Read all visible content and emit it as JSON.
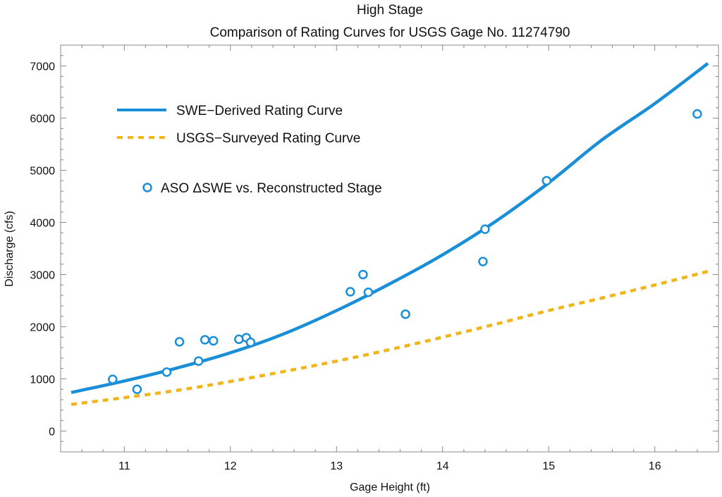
{
  "chart_data": {
    "type": "scatter",
    "title": "High Stage",
    "subtitle": "Comparison of Rating Curves for USGS Gage No. 11274790",
    "xlabel": "Gage Height (ft)",
    "ylabel": "Discharge (cfs)",
    "xlim": [
      10.4,
      16.6
    ],
    "ylim": [
      -400,
      7400
    ],
    "x_ticks": [
      11,
      12,
      13,
      14,
      15,
      16
    ],
    "y_ticks": [
      0,
      1000,
      2000,
      3000,
      4000,
      5000,
      6000,
      7000
    ],
    "grid": false,
    "legend_position": "top-left",
    "series": [
      {
        "name": "SWE−Derived Rating Curve",
        "kind": "line",
        "style": "solid",
        "color": "#1a8fd8",
        "x": [
          10.5,
          11.0,
          11.5,
          12.0,
          12.5,
          13.0,
          13.5,
          14.0,
          14.5,
          15.0,
          15.5,
          16.0,
          16.5
        ],
        "y": [
          740,
          960,
          1210,
          1500,
          1860,
          2310,
          2820,
          3380,
          4020,
          4760,
          5580,
          6280,
          7050
        ]
      },
      {
        "name": "USGS−Surveyed Rating Curve",
        "kind": "line",
        "style": "dashed",
        "color": "#f2b51c",
        "x": [
          10.5,
          11.0,
          11.5,
          12.0,
          12.5,
          13.0,
          13.5,
          14.0,
          14.5,
          15.0,
          15.5,
          16.0,
          16.5
        ],
        "y": [
          510,
          640,
          780,
          950,
          1140,
          1340,
          1560,
          1800,
          2050,
          2310,
          2550,
          2800,
          3060
        ]
      },
      {
        "name": "ASO ΔSWE vs. Reconstructed Stage",
        "kind": "points",
        "color": "#1a8fd8",
        "x": [
          10.89,
          11.12,
          11.4,
          11.52,
          11.7,
          11.76,
          11.84,
          12.08,
          12.15,
          12.19,
          13.13,
          13.25,
          13.3,
          13.65,
          14.38,
          14.4,
          14.98,
          16.4
        ],
        "y": [
          990,
          800,
          1130,
          1710,
          1340,
          1750,
          1730,
          1760,
          1790,
          1700,
          2670,
          3000,
          2660,
          2240,
          3250,
          3870,
          4800,
          6080
        ]
      }
    ]
  }
}
